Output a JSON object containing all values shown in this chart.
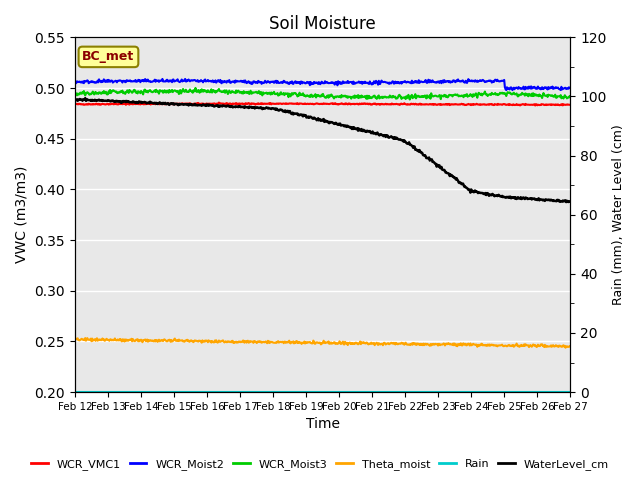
{
  "title": "Soil Moisture",
  "xlabel": "Time",
  "ylabel_left": "VWC (m3/m3)",
  "ylabel_right": "Rain (mm), Water Level (cm)",
  "ylim_left": [
    0.2,
    0.55
  ],
  "ylim_right": [
    0,
    120
  ],
  "yticks_left": [
    0.2,
    0.25,
    0.3,
    0.35,
    0.4,
    0.45,
    0.5,
    0.55
  ],
  "yticks_right": [
    0,
    20,
    40,
    60,
    80,
    100,
    120
  ],
  "xtick_labels": [
    "Feb 12",
    "Feb 13",
    "Feb 14",
    "Feb 15",
    "Feb 16",
    "Feb 17",
    "Feb 18",
    "Feb 19",
    "Feb 20",
    "Feb 21",
    "Feb 22",
    "Feb 23",
    "Feb 24",
    "Feb 25",
    "Feb 26",
    "Feb 27"
  ],
  "background_color": "#e8e8e8",
  "grid_color": "#ffffff",
  "annotation_box_color": "#ffff99",
  "annotation_box_edge": "#8B8000",
  "annotation_text": "BC_met",
  "annotation_text_color": "#8B0000",
  "colors": {
    "WCR_VMC1": "#ff0000",
    "WCR_Moist2": "#0000ff",
    "WCR_Moist3": "#00cc00",
    "Theta_moist": "#ffa500",
    "Rain": "#00cccc",
    "WaterLevel_cm": "#000000"
  },
  "line_widths": {
    "WCR_VMC1": 1.5,
    "WCR_Moist2": 1.5,
    "WCR_Moist3": 1.5,
    "Theta_moist": 1.5,
    "Rain": 1.5,
    "WaterLevel_cm": 1.8
  }
}
